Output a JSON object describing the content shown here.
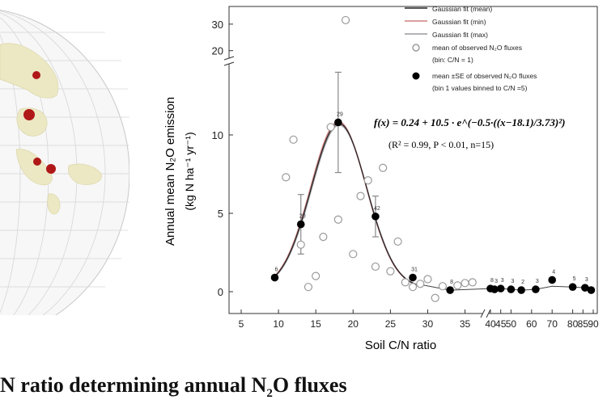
{
  "caption": {
    "text_before": "N ratio determining annual N",
    "subscript": "2",
    "text_after": "O fluxes"
  },
  "chart_data": {
    "type": "scatter",
    "xlabel": "Soil C/N ratio",
    "ylabel_line1": "Annual mean N₂O emission",
    "ylabel_line2": "(kg N ha⁻¹ yr⁻¹)",
    "x_ticks": [
      "5",
      "10",
      "15",
      "20",
      "25",
      "30",
      "35",
      "40",
      "45",
      "50",
      "60",
      "70",
      "80",
      "85",
      "90"
    ],
    "y_ticks": [
      "0",
      "5",
      "10",
      "20",
      "30"
    ],
    "xlim_main": [
      5,
      37
    ],
    "x_break_segment": [
      40,
      90
    ],
    "ylim_main": [
      -0.5,
      14
    ],
    "y_break_segment": [
      19,
      33
    ],
    "grid": false,
    "legend_position": "top-right",
    "legend": [
      {
        "label": "Gaussian fit (mean)",
        "symbol": "line",
        "color": "#222222"
      },
      {
        "label": "Gaussian fit (min)",
        "symbol": "line",
        "color": "#d08080"
      },
      {
        "label": "Gaussian fit (max)",
        "symbol": "line",
        "color": "#9a9aa0"
      },
      {
        "label": "mean of observed N₂O fluxes",
        "sublabel": "(bin: C/N = 1)",
        "symbol": "open-circle",
        "color": "#888888"
      },
      {
        "label": "mean ±SE of observed N₂O fluxes",
        "sublabel": "(bin 1 values binned to C/N =5)",
        "symbol": "filled-circle",
        "color": "#000000"
      }
    ],
    "equation": "f(x) = 0.24 + 10.5 · e^(−0.5·((x−18.1)/3.73)²)",
    "equation_stats": "(R² = 0.99, P < 0.01, n=15)",
    "gaussian_fit": {
      "baseline": 0.24,
      "amplitude": 10.5,
      "center": 18.1,
      "width": 3.73,
      "x_start": 9.5,
      "x_end": 28.5
    },
    "series": [
      {
        "name": "mean ±SE of observed N₂O fluxes",
        "points": [
          {
            "x": 9.5,
            "y": 0.9,
            "label": "6"
          },
          {
            "x": 13,
            "y": 4.3,
            "se": 1.9,
            "label": "20"
          },
          {
            "x": 18,
            "y": 10.8,
            "se": 3.2,
            "label": "29"
          },
          {
            "x": 23,
            "y": 4.8,
            "se": 1.3,
            "label": "42"
          },
          {
            "x": 28,
            "y": 0.9,
            "label": "31"
          },
          {
            "x": 33,
            "y": 0.1,
            "label": "8"
          },
          {
            "x": 38,
            "y": 0.2,
            "label": "8"
          },
          {
            "x": 42,
            "y": 0.15,
            "label": "3"
          },
          {
            "x": 45,
            "y": 0.2,
            "label": "3"
          },
          {
            "x": 50,
            "y": 0.15,
            "label": "3"
          },
          {
            "x": 55,
            "y": 0.1,
            "label": "2"
          },
          {
            "x": 62,
            "y": 0.15,
            "label": "3"
          },
          {
            "x": 70,
            "y": 0.75,
            "label": "4"
          },
          {
            "x": 80,
            "y": 0.3,
            "label": "5"
          },
          {
            "x": 86,
            "y": 0.25,
            "label": "3"
          },
          {
            "x": 89,
            "y": 0.1,
            "label": ""
          }
        ]
      },
      {
        "name": "mean of observed N₂O fluxes",
        "points": [
          {
            "x": 11,
            "y": 7.3
          },
          {
            "x": 12,
            "y": 9.7
          },
          {
            "x": 13,
            "y": 3.0
          },
          {
            "x": 14,
            "y": 0.3
          },
          {
            "x": 15,
            "y": 1.0
          },
          {
            "x": 16,
            "y": 3.5
          },
          {
            "x": 17,
            "y": 10.5
          },
          {
            "x": 18,
            "y": 4.6
          },
          {
            "x": 19,
            "y": 31.5
          },
          {
            "x": 20,
            "y": 2.4
          },
          {
            "x": 21,
            "y": 6.1
          },
          {
            "x": 22,
            "y": 7.1
          },
          {
            "x": 23,
            "y": 1.6
          },
          {
            "x": 24,
            "y": 7.9
          },
          {
            "x": 25,
            "y": 1.3
          },
          {
            "x": 26,
            "y": 3.2
          },
          {
            "x": 27,
            "y": 0.6
          },
          {
            "x": 28,
            "y": 0.3
          },
          {
            "x": 29,
            "y": 0.5
          },
          {
            "x": 30,
            "y": 0.8
          },
          {
            "x": 31,
            "y": -0.4
          },
          {
            "x": 32,
            "y": 0.35
          },
          {
            "x": 34,
            "y": 0.4
          },
          {
            "x": 35,
            "y": 0.55
          },
          {
            "x": 36,
            "y": 0.6
          }
        ]
      }
    ]
  },
  "map": {
    "marker_color": "#b01818"
  }
}
